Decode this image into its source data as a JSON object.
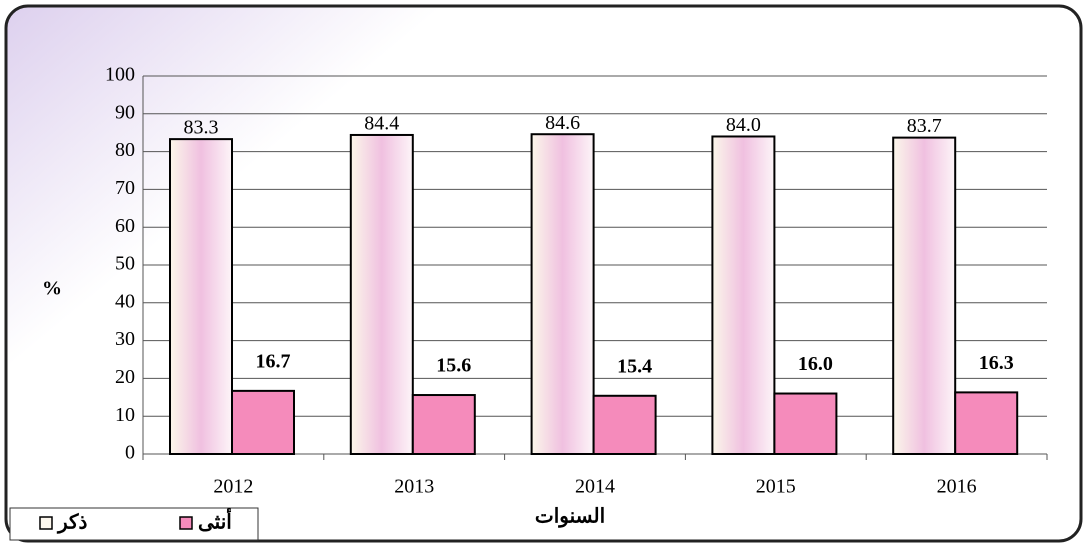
{
  "chart_data": {
    "type": "bar",
    "categories": [
      "2012",
      "2013",
      "2014",
      "2015",
      "2016"
    ],
    "series": [
      {
        "name": "ذكر",
        "color": "#fdf8ee",
        "values": [
          83.3,
          84.4,
          84.6,
          84,
          83.7
        ],
        "value_labels": [
          "83.3",
          "84.4",
          "84.6",
          "84.0",
          "83.7"
        ]
      },
      {
        "name": "أنثى",
        "color": "#f58bbb",
        "values": [
          16.7,
          15.6,
          15.4,
          16,
          16.3
        ],
        "value_labels": [
          "16.7",
          "15.6",
          "15.4",
          "16.0",
          "16.3"
        ]
      }
    ],
    "ylabel": "%",
    "xlabel": "السنوات",
    "ylim": [
      0,
      100
    ],
    "yticks": [
      0,
      10,
      20,
      30,
      40,
      50,
      60,
      70,
      80,
      90,
      100
    ],
    "grid": true,
    "legend": "bottom-left"
  }
}
